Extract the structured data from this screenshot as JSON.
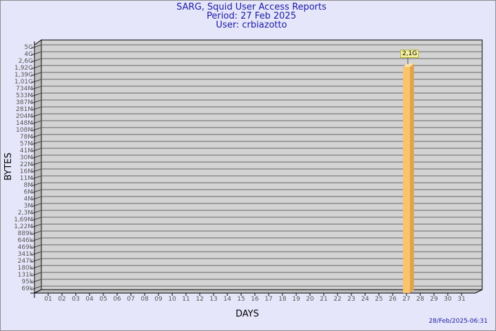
{
  "header": {
    "title": "SARG, Squid User Access Reports",
    "period": "Period: 27 Feb 2025",
    "user": "User: crbiazotto"
  },
  "footer": {
    "timestamp": "28/Feb/2025-06:31"
  },
  "colors": {
    "background": "#e6e6fa",
    "plot": "#d3d3d3",
    "bar_front": "#fbc36a",
    "bar_side": "#dea54e",
    "title": "#1a1aa6"
  },
  "chart_data": {
    "type": "bar",
    "xlabel": "DAYS",
    "ylabel": "BYTES",
    "categories": [
      "01",
      "02",
      "03",
      "04",
      "05",
      "06",
      "07",
      "08",
      "09",
      "10",
      "11",
      "12",
      "13",
      "14",
      "15",
      "16",
      "17",
      "18",
      "19",
      "20",
      "21",
      "22",
      "23",
      "24",
      "25",
      "26",
      "27",
      "28",
      "29",
      "30",
      "31"
    ],
    "series": [
      {
        "values": [
          0,
          0,
          0,
          0,
          0,
          0,
          0,
          0,
          0,
          0,
          0,
          0,
          0,
          0,
          0,
          0,
          0,
          0,
          0,
          0,
          0,
          0,
          0,
          0,
          0,
          0,
          2100000000,
          0,
          0,
          0,
          0
        ]
      }
    ],
    "data_labels": {
      "27": "2,1G"
    },
    "yticks": [
      "5G",
      "4G",
      "2,6G",
      "1,92G",
      "1,39G",
      "1,01G",
      "734M",
      "533M",
      "387M",
      "281M",
      "204M",
      "148M",
      "108M",
      "78M",
      "57M",
      "41M",
      "30M",
      "22M",
      "16M",
      "11M",
      "8M",
      "6M",
      "4M",
      "3M",
      "2,3M",
      "1,69M",
      "1,22M",
      "889k",
      "646k",
      "469k",
      "341k",
      "247k",
      "180k",
      "131k",
      "95k",
      "69k"
    ],
    "grid": true,
    "legend": "none"
  }
}
